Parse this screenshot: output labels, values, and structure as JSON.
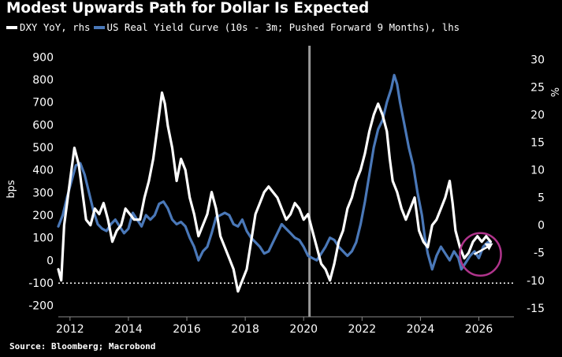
{
  "title": "Modest Upwards Path for Dollar Is Expected",
  "legend": {
    "dxy_label": "DXY YoY, rhs",
    "curve_label": "US Real Yield Curve (10s - 3m; Pushed Forward 9 Months), lhs"
  },
  "source": "Source: Bloomberg; Macrobond",
  "colors": {
    "background": "#000000",
    "dxy": "#ffffff",
    "curve": "#4a78b8",
    "highlight_circle": "#b0348c",
    "vline": "#9a9a9a"
  },
  "chart_data": {
    "type": "line",
    "title": "Modest Upwards Path for Dollar Is Expected",
    "left_axis": {
      "label": "bps",
      "range": [
        -250,
        950
      ],
      "ticks": [
        900,
        800,
        700,
        600,
        500,
        400,
        300,
        200,
        100,
        0,
        -100,
        -200
      ]
    },
    "right_axis": {
      "label": "%",
      "range": [
        -16.6,
        32.5
      ],
      "ticks": [
        30,
        25,
        20,
        15,
        10,
        5,
        0,
        -5,
        -10,
        -15
      ]
    },
    "x_axis": {
      "range": [
        2011.6,
        2027.2
      ],
      "ticks": [
        "2012",
        "2014",
        "2016",
        "2018",
        "2020",
        "2022",
        "2024",
        "2026"
      ]
    },
    "vertical_line_x": 2020.2,
    "reference_line": {
      "axis": "rhs",
      "value": -10.5,
      "style": "dotted"
    },
    "series": [
      {
        "name": "DXY YoY, rhs",
        "axis": "right",
        "x": [
          2011.6,
          2011.7,
          2011.8,
          2011.9,
          2012.0,
          2012.15,
          2012.3,
          2012.45,
          2012.55,
          2012.7,
          2012.85,
          2013.0,
          2013.15,
          2013.3,
          2013.45,
          2013.6,
          2013.75,
          2013.9,
          2014.05,
          2014.2,
          2014.4,
          2014.55,
          2014.7,
          2014.85,
          2015.0,
          2015.15,
          2015.25,
          2015.35,
          2015.5,
          2015.65,
          2015.8,
          2015.95,
          2016.1,
          2016.25,
          2016.4,
          2016.55,
          2016.7,
          2016.85,
          2017.0,
          2017.15,
          2017.3,
          2017.45,
          2017.6,
          2017.75,
          2017.9,
          2018.05,
          2018.2,
          2018.35,
          2018.5,
          2018.65,
          2018.8,
          2018.95,
          2019.1,
          2019.25,
          2019.4,
          2019.55,
          2019.7,
          2019.85,
          2020.0,
          2020.15,
          2020.3,
          2020.45,
          2020.6,
          2020.75,
          2020.9,
          2021.05,
          2021.2,
          2021.35,
          2021.5,
          2021.65,
          2021.8,
          2021.95,
          2022.1,
          2022.25,
          2022.4,
          2022.55,
          2022.7,
          2022.85,
          2022.95,
          2023.05,
          2023.2,
          2023.35,
          2023.5,
          2023.65,
          2023.8,
          2023.95,
          2024.1,
          2024.25,
          2024.4,
          2024.55,
          2024.7,
          2024.85,
          2025.0,
          2025.1,
          2025.2,
          2025.35,
          2025.5,
          2025.65,
          2025.8,
          2025.95,
          2026.1,
          2026.25,
          2026.4
        ],
        "values": [
          -8,
          -10,
          0,
          4,
          8,
          14,
          11,
          5,
          1,
          0,
          3,
          2,
          4,
          1,
          -3,
          -1,
          0,
          3,
          2,
          1,
          1,
          5,
          8,
          12,
          18,
          24,
          22,
          18,
          14,
          8,
          12,
          10,
          5,
          2,
          -2,
          0,
          2,
          6,
          3,
          -2,
          -4,
          -6,
          -8,
          -12,
          -10,
          -8,
          -3,
          2,
          4,
          6,
          7,
          6,
          5,
          3,
          1,
          2,
          4,
          3,
          1,
          2,
          -1,
          -4,
          -7,
          -8,
          -10,
          -7,
          -3,
          -1,
          3,
          5,
          8,
          10,
          13,
          17,
          20,
          22,
          20,
          17,
          12,
          8,
          6,
          3,
          1,
          3,
          5,
          -1,
          -3,
          -4,
          0,
          1,
          3,
          5,
          8,
          4,
          -1,
          -4,
          -6,
          -5,
          -3,
          -2,
          -3,
          -2,
          -3
        ]
      },
      {
        "name": "US Real Yield Curve (10s - 3m; Pushed Forward 9 Months), lhs",
        "axis": "left",
        "x": [
          2011.6,
          2011.75,
          2011.9,
          2012.05,
          2012.2,
          2012.35,
          2012.5,
          2012.65,
          2012.8,
          2012.95,
          2013.1,
          2013.25,
          2013.4,
          2013.55,
          2013.7,
          2013.85,
          2014.0,
          2014.15,
          2014.3,
          2014.45,
          2014.6,
          2014.75,
          2014.9,
          2015.05,
          2015.2,
          2015.35,
          2015.5,
          2015.65,
          2015.8,
          2015.95,
          2016.1,
          2016.25,
          2016.4,
          2016.55,
          2016.7,
          2016.85,
          2017.0,
          2017.15,
          2017.3,
          2017.45,
          2017.6,
          2017.75,
          2017.9,
          2018.05,
          2018.2,
          2018.35,
          2018.5,
          2018.65,
          2018.8,
          2018.95,
          2019.1,
          2019.25,
          2019.4,
          2019.55,
          2019.7,
          2019.85,
          2020.0,
          2020.15,
          2020.3,
          2020.45,
          2020.6,
          2020.75,
          2020.9,
          2021.05,
          2021.2,
          2021.35,
          2021.5,
          2021.65,
          2021.8,
          2021.95,
          2022.1,
          2022.25,
          2022.4,
          2022.55,
          2022.7,
          2022.85,
          2023.0,
          2023.1,
          2023.2,
          2023.3,
          2023.45,
          2023.6,
          2023.75,
          2023.9,
          2024.05,
          2024.15,
          2024.25,
          2024.4,
          2024.55,
          2024.7,
          2024.85,
          2025.0,
          2025.15,
          2025.3,
          2025.4,
          2025.55,
          2025.7,
          2025.85,
          2026.0,
          2026.15,
          2026.3,
          2026.4
        ],
        "values": [
          150,
          200,
          280,
          350,
          420,
          430,
          380,
          300,
          220,
          160,
          140,
          130,
          160,
          180,
          150,
          120,
          140,
          210,
          180,
          150,
          200,
          180,
          200,
          250,
          260,
          230,
          180,
          160,
          170,
          150,
          100,
          60,
          0,
          40,
          60,
          120,
          190,
          200,
          210,
          200,
          160,
          150,
          180,
          130,
          100,
          80,
          60,
          30,
          40,
          80,
          120,
          160,
          140,
          120,
          100,
          90,
          60,
          20,
          10,
          0,
          30,
          60,
          100,
          90,
          60,
          40,
          20,
          40,
          80,
          160,
          260,
          380,
          500,
          580,
          620,
          700,
          760,
          820,
          780,
          700,
          600,
          500,
          420,
          300,
          200,
          100,
          30,
          -40,
          20,
          60,
          30,
          0,
          40,
          10,
          -40,
          -10,
          20,
          40,
          10,
          60,
          80,
          80
        ]
      }
    ],
    "annotation": {
      "type": "circle-with-arrow",
      "x": 2026.0,
      "rhs_value": -5,
      "note": "highlighted recent upturn"
    }
  }
}
